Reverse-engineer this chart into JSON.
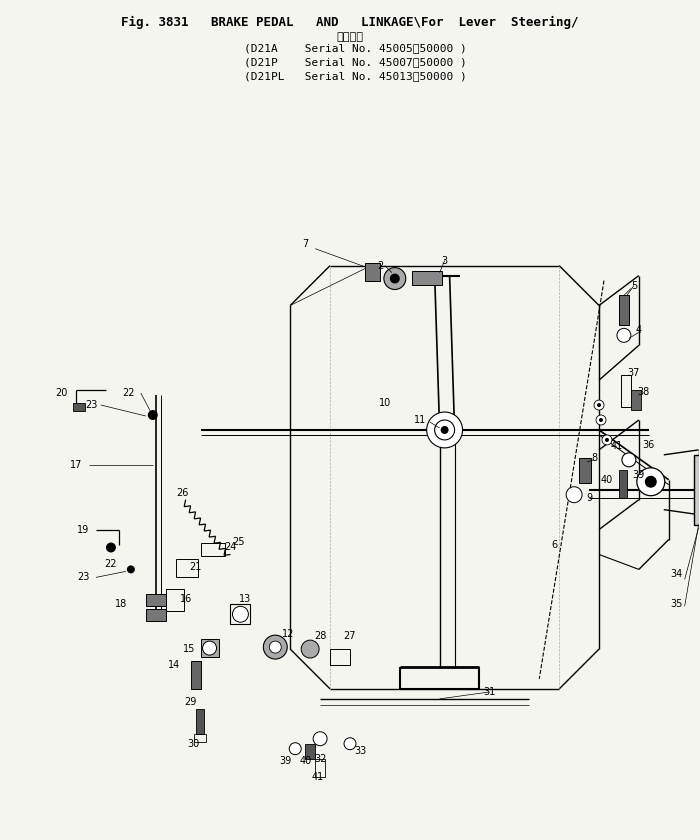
{
  "bg_color": "#f5f5f0",
  "title": "Fig. 3831  BRAKE PEDAL  AND  LINKAGE\\For Lever Steering/",
  "subtitle": "適用号機",
  "model_lines": [
    "(D21A    Serial No. 45005～50000 )",
    "(D21P    Serial No. 45007～50000 )",
    "(D21PL   Serial No. 45013～50000 )"
  ],
  "figsize": [
    7.0,
    8.4
  ],
  "dpi": 100
}
